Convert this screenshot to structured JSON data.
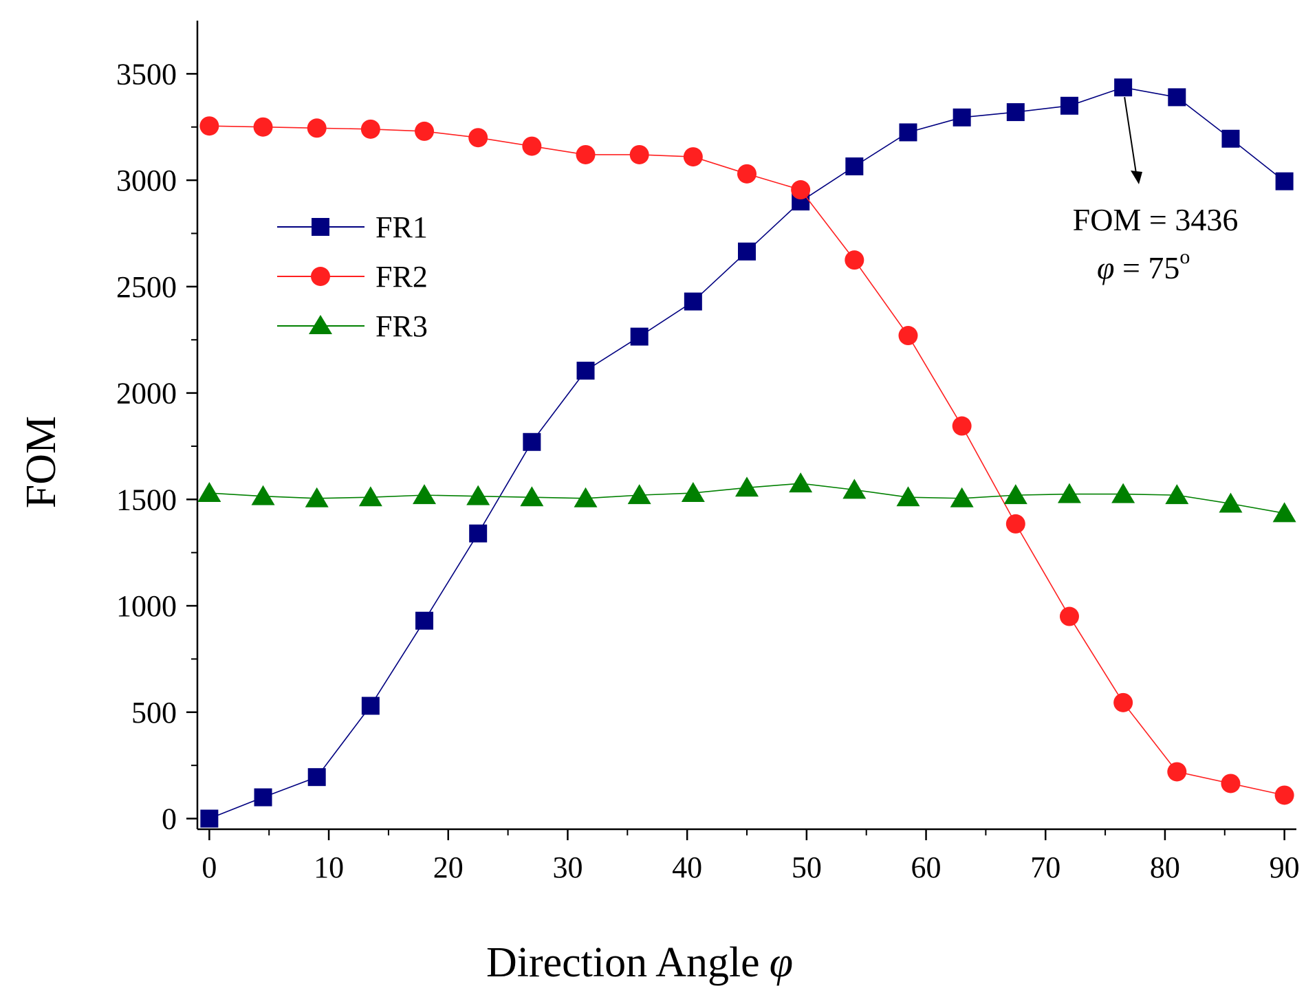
{
  "chart_data": {
    "type": "line",
    "title": "",
    "xlabel": "Direction Angle",
    "xlabel_symbol": "φ",
    "ylabel": "FOM",
    "xlim": [
      -1,
      91
    ],
    "ylim": [
      -50,
      3750
    ],
    "xticks": [
      0,
      10,
      20,
      30,
      40,
      50,
      60,
      70,
      80,
      90
    ],
    "yticks": [
      0,
      500,
      1000,
      1500,
      2000,
      2500,
      3000,
      3500
    ],
    "legend_position": "upper-left",
    "x": [
      0,
      4.5,
      9,
      13.5,
      18,
      22.5,
      27,
      31.5,
      36,
      40.5,
      45,
      49.5,
      54,
      58.5,
      63,
      67.5,
      72,
      76.5,
      81,
      85.5,
      90
    ],
    "series": [
      {
        "name": "FR1",
        "color": "#000080",
        "marker": "square",
        "values": [
          0,
          100,
          195,
          530,
          930,
          1340,
          1770,
          2105,
          2265,
          2430,
          2665,
          2900,
          3065,
          3225,
          3295,
          3320,
          3350,
          3436,
          3390,
          3195,
          2995
        ]
      },
      {
        "name": "FR2",
        "color": "#ff2020",
        "marker": "circle",
        "values": [
          3255,
          3250,
          3245,
          3240,
          3230,
          3200,
          3160,
          3120,
          3120,
          3110,
          3030,
          2955,
          2625,
          2270,
          1845,
          1385,
          950,
          545,
          220,
          165,
          110
        ]
      },
      {
        "name": "FR3",
        "color": "#008000",
        "marker": "triangle",
        "values": [
          1530,
          1515,
          1505,
          1510,
          1520,
          1515,
          1510,
          1505,
          1520,
          1530,
          1555,
          1575,
          1545,
          1510,
          1505,
          1520,
          1525,
          1525,
          1520,
          1480,
          1435
        ]
      }
    ],
    "annotation": {
      "line1": "FOM = 3436",
      "line2_symbol": "φ",
      "line2_text": " = 75",
      "line2_sup": "o",
      "points_to_x": 76.5,
      "points_to_y": 3436
    }
  }
}
